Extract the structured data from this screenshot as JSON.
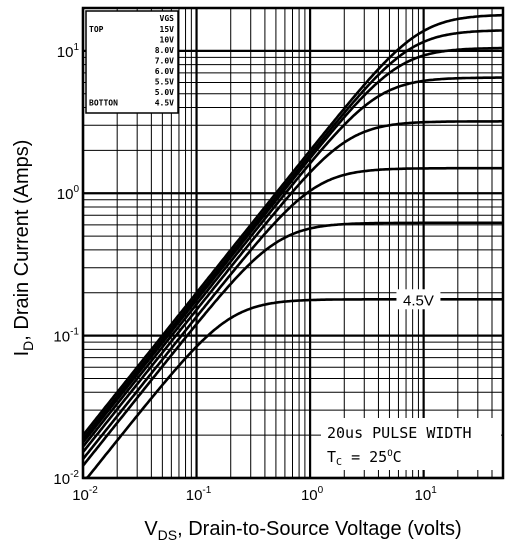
{
  "chart_data": {
    "type": "line",
    "xlabel": {
      "main": "V",
      "sub": "DS",
      "rest": ", Drain-to-Source Voltage (volts)"
    },
    "ylabel": {
      "main": "I",
      "sub": "D",
      "rest": ", Drain Current (Amps)"
    },
    "x_scale": "log",
    "y_scale": "log",
    "xlim": [
      0.01,
      50
    ],
    "ylim": [
      0.01,
      20
    ],
    "grid": true,
    "x_ticks": [
      {
        "value": 0.01,
        "base": "10",
        "exp": "-2"
      },
      {
        "value": 0.1,
        "base": "10",
        "exp": "-1"
      },
      {
        "value": 1,
        "base": "10",
        "exp": "0"
      },
      {
        "value": 10,
        "base": "10",
        "exp": "1"
      }
    ],
    "y_ticks": [
      {
        "value": 0.01,
        "base": "10",
        "exp": "-2"
      },
      {
        "value": 0.1,
        "base": "10",
        "exp": "-1"
      },
      {
        "value": 1,
        "base": "10",
        "exp": "0"
      },
      {
        "value": 10,
        "base": "10",
        "exp": "1"
      }
    ],
    "legend": {
      "placement": "top-left",
      "header": "VGS",
      "top_label": "TOP",
      "bottom_label": "BOTTON",
      "entries": [
        "15V",
        "10V",
        "8.0V",
        "7.0V",
        "6.0V",
        "5.5V",
        "5.0V",
        "4.5V"
      ]
    },
    "series": [
      {
        "name": "15V",
        "k": 2.0,
        "isat": 18
      },
      {
        "name": "10V",
        "k": 1.88,
        "isat": 14
      },
      {
        "name": "8.0V",
        "k": 1.78,
        "isat": 10.5
      },
      {
        "name": "7.0V",
        "k": 1.66,
        "isat": 6.5
      },
      {
        "name": "6.0V",
        "k": 1.52,
        "isat": 3.2
      },
      {
        "name": "5.5V",
        "k": 1.36,
        "isat": 1.5
      },
      {
        "name": "5.0V",
        "k": 1.22,
        "isat": 0.62
      },
      {
        "name": "4.5V",
        "k": 0.92,
        "isat": 0.18
      }
    ],
    "annotations": {
      "curve_label": "4.5V",
      "curve_label_x": 9.0,
      "conditions_line1": "20us PULSE WIDTH",
      "conditions_line2_prefix": "T",
      "conditions_line2_sub": "C",
      "conditions_line2_value": " = 25",
      "conditions_line2_sup": "O",
      "conditions_line2_unit": "C"
    }
  }
}
